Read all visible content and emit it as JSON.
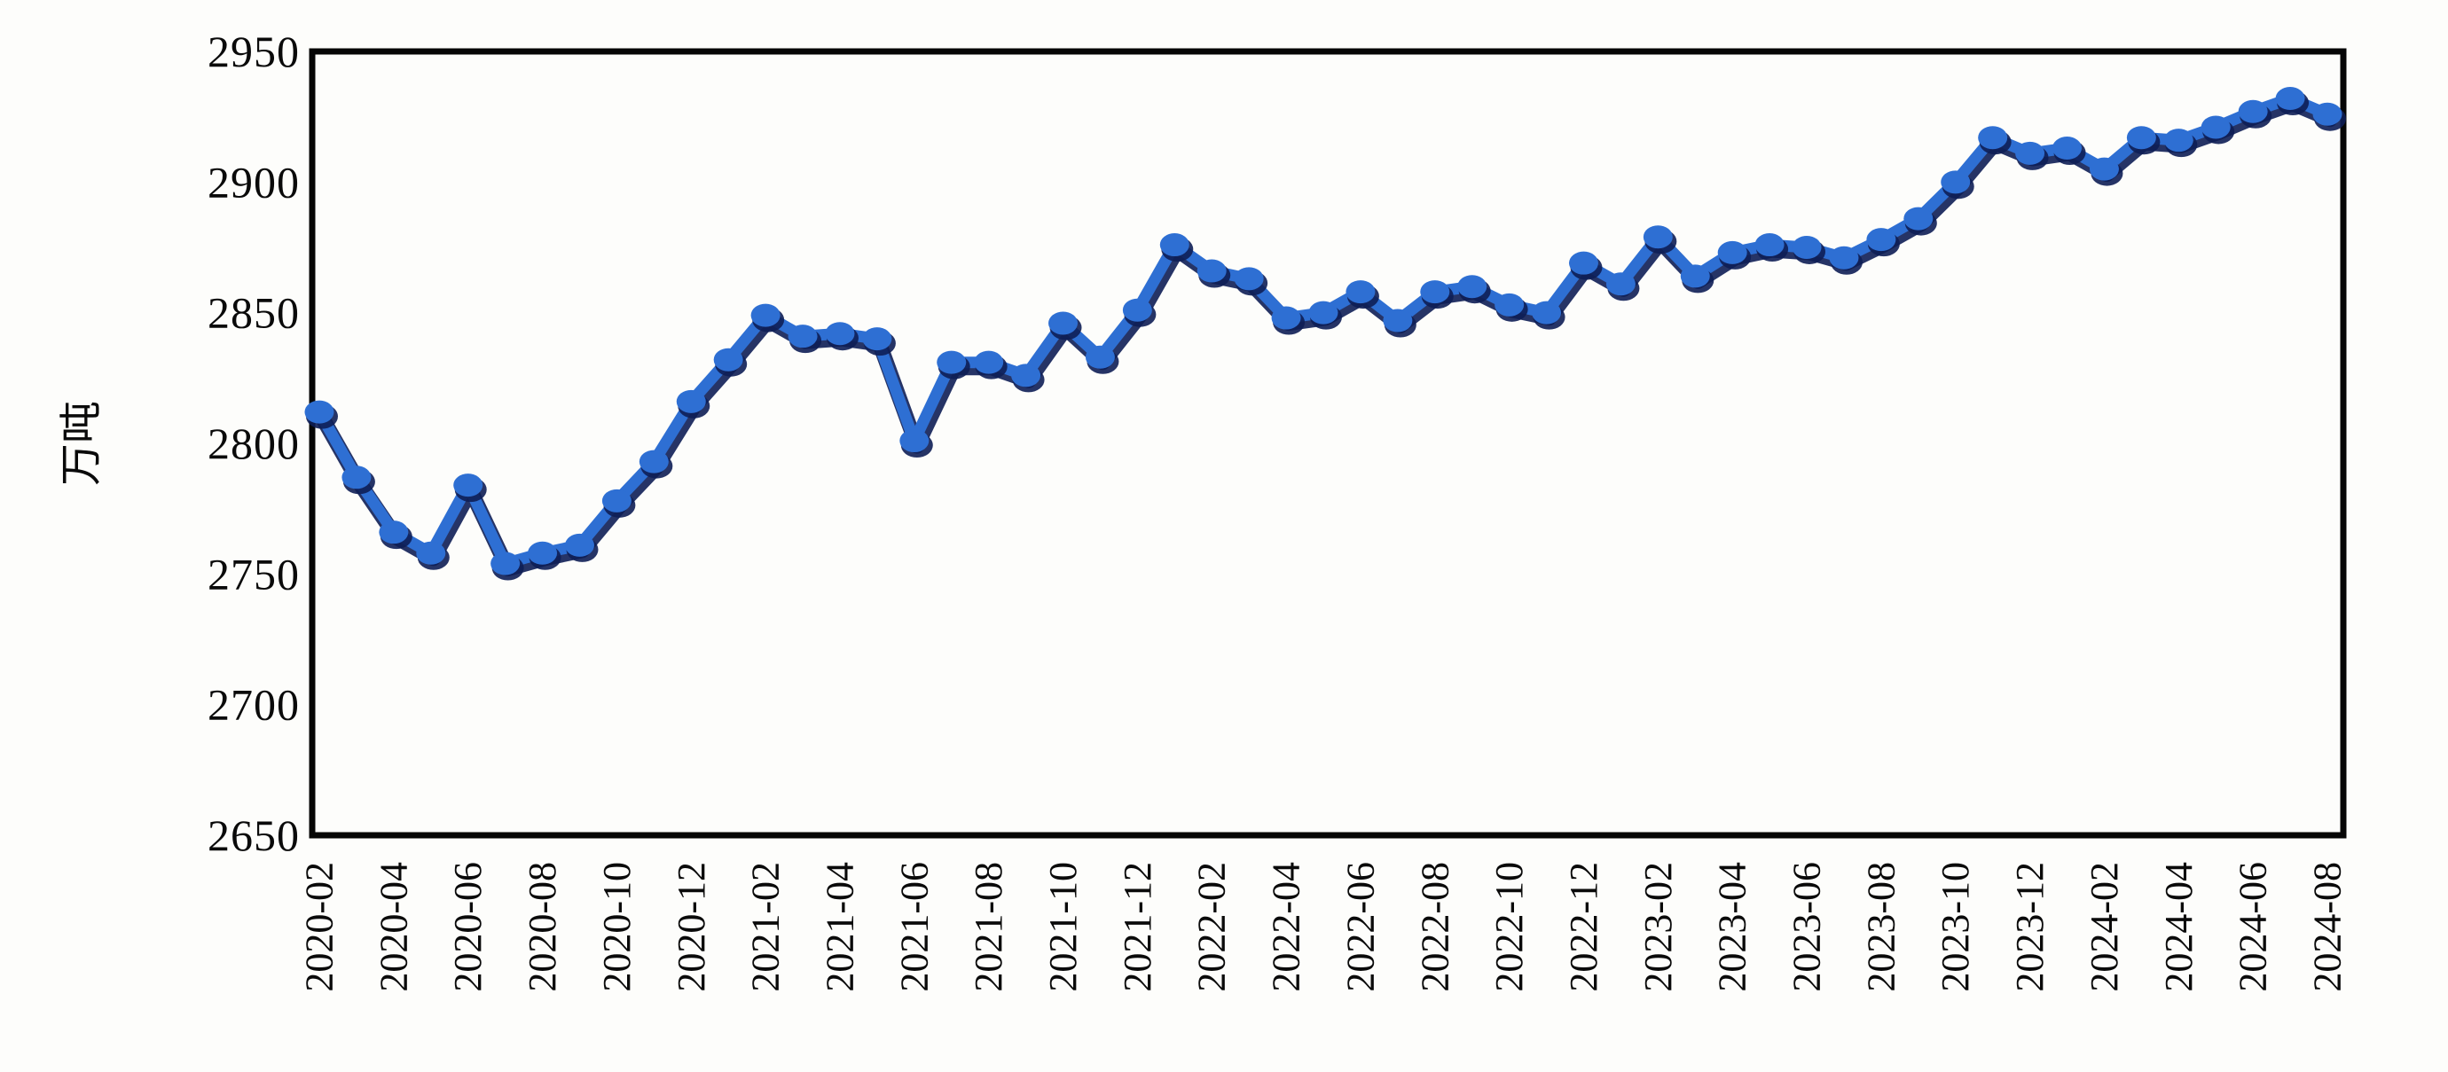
{
  "chart_data": {
    "type": "line",
    "title": "",
    "xlabel": "",
    "ylabel": "万吨",
    "ylim": [
      2650,
      2950
    ],
    "yticks": [
      2950,
      2900,
      2850,
      2800,
      2750,
      2700,
      2650
    ],
    "x_tick_every": 2,
    "grid": false,
    "legend": "none",
    "x": [
      "2020-02",
      "2020-03",
      "2020-04",
      "2020-05",
      "2020-06",
      "2020-07",
      "2020-08",
      "2020-09",
      "2020-10",
      "2020-11",
      "2020-12",
      "2021-01",
      "2021-02",
      "2021-03",
      "2021-04",
      "2021-05",
      "2021-06",
      "2021-07",
      "2021-08",
      "2021-09",
      "2021-10",
      "2021-11",
      "2021-12",
      "2022-01",
      "2022-02",
      "2022-03",
      "2022-04",
      "2022-05",
      "2022-06",
      "2022-07",
      "2022-08",
      "2022-09",
      "2022-10",
      "2022-11",
      "2022-12",
      "2023-01",
      "2023-02",
      "2023-03",
      "2023-04",
      "2023-05",
      "2023-06",
      "2023-07",
      "2023-08",
      "2023-09",
      "2023-10",
      "2023-11",
      "2023-12",
      "2024-01",
      "2024-02",
      "2024-03",
      "2024-04",
      "2024-05",
      "2024-06",
      "2024-07",
      "2024-08"
    ],
    "values": [
      2812,
      2787,
      2766,
      2758,
      2784,
      2754,
      2758,
      2761,
      2778,
      2793,
      2816,
      2832,
      2849,
      2841,
      2842,
      2840,
      2801,
      2831,
      2831,
      2826,
      2846,
      2833,
      2851,
      2876,
      2866,
      2863,
      2848,
      2850,
      2858,
      2847,
      2858,
      2860,
      2853,
      2850,
      2869,
      2861,
      2879,
      2864,
      2873,
      2876,
      2875,
      2871,
      2878,
      2886,
      2900,
      2917,
      2911,
      2913,
      2905,
      2917,
      2916,
      2921,
      2927,
      2932,
      2926
    ],
    "line_color": "#2e6fd3",
    "line_edge_color": "#0e1e55",
    "axis_color": "#060606",
    "background": "#fdfdfb",
    "tick_label_color": "#0a0a0a"
  }
}
